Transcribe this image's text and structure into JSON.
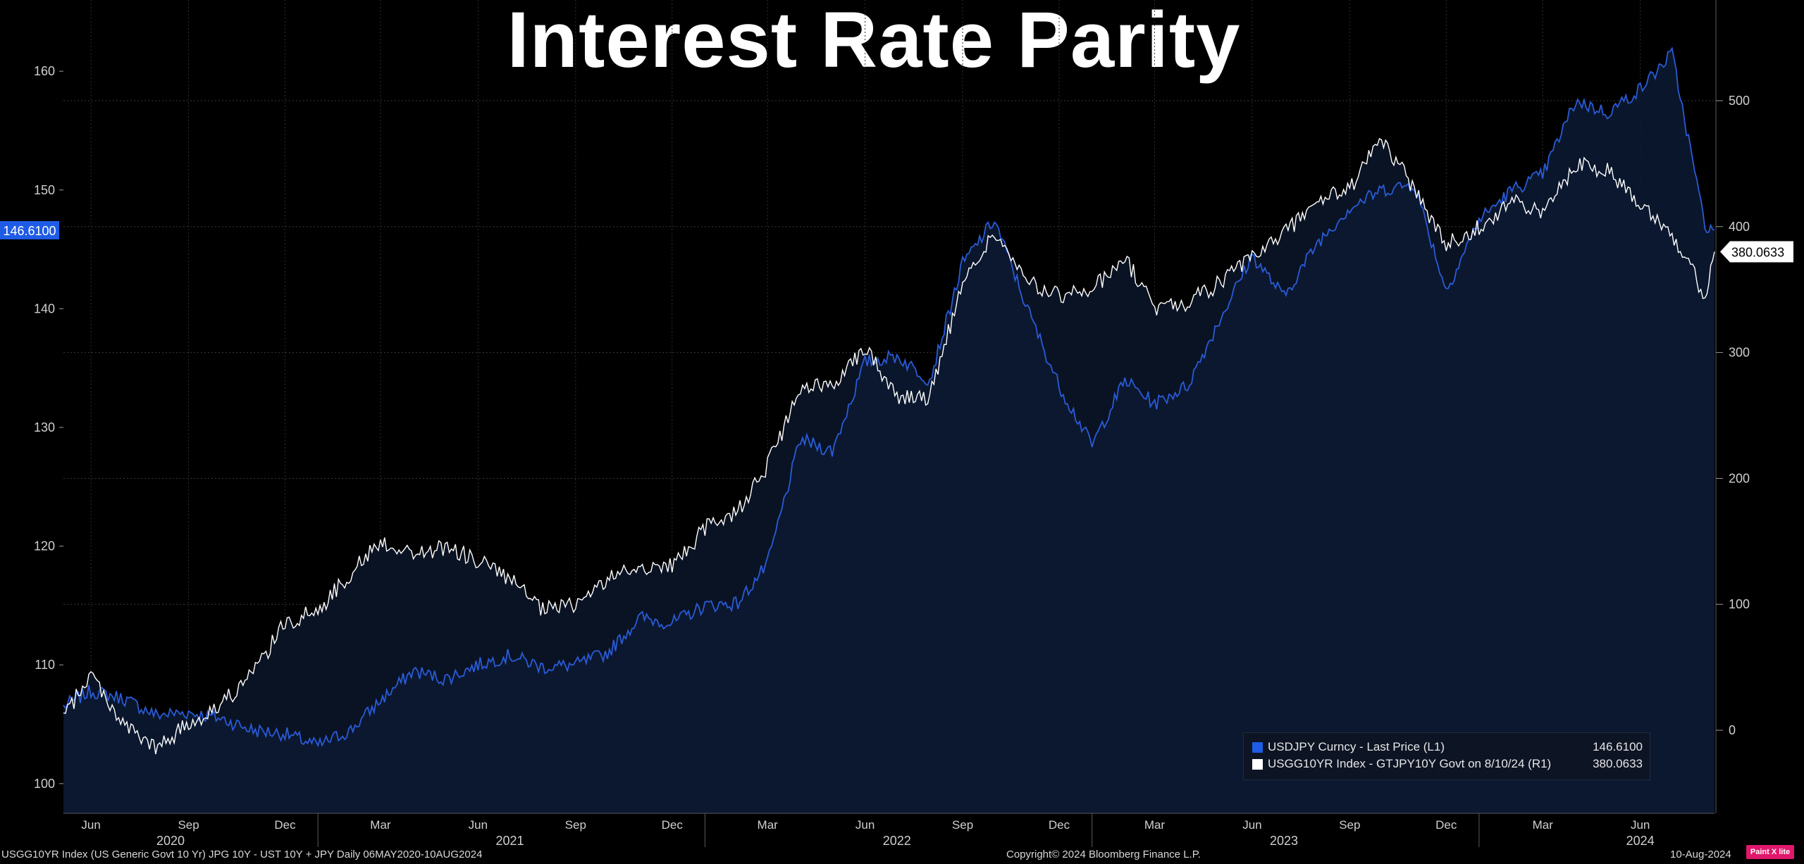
{
  "title": "Interest Rate Parity",
  "chart_data": {
    "type": "line",
    "left_axis": {
      "ticks": [
        100,
        110,
        120,
        130,
        140,
        150,
        160
      ],
      "ylim": [
        97.5,
        166
      ],
      "last_value_label": "146.6100",
      "last_value": 146.61
    },
    "right_axis": {
      "ticks": [
        0,
        100,
        200,
        300,
        400,
        500
      ],
      "ylim": [
        -66,
        580
      ],
      "last_value_label": "380.0633",
      "last_value": 380.0633
    },
    "x_axis": {
      "month_ticks": [
        "Jun",
        "Sep",
        "Dec",
        "Mar",
        "Jun",
        "Sep",
        "Dec",
        "Mar",
        "Jun",
        "Sep",
        "Dec",
        "Mar",
        "Jun",
        "Sep",
        "Dec",
        "Mar",
        "Jun"
      ],
      "year_labels": [
        "2020",
        "2021",
        "2022",
        "2023",
        "2024"
      ],
      "range": [
        "2020-05-06",
        "2024-08-10"
      ]
    },
    "series": [
      {
        "name": "USDJPY Curncy - Last Price (L1)",
        "axis": "left",
        "color": "#2a5bd7",
        "points": [
          [
            "2020-05-06",
            106.5
          ],
          [
            "2020-06-01",
            107.8
          ],
          [
            "2020-07-01",
            107.2
          ],
          [
            "2020-08-01",
            105.8
          ],
          [
            "2020-09-01",
            106.0
          ],
          [
            "2020-10-01",
            105.5
          ],
          [
            "2020-11-01",
            104.5
          ],
          [
            "2020-12-01",
            104.2
          ],
          [
            "2021-01-01",
            103.2
          ],
          [
            "2021-02-01",
            104.5
          ],
          [
            "2021-03-01",
            107.0
          ],
          [
            "2021-04-01",
            109.5
          ],
          [
            "2021-05-01",
            108.8
          ],
          [
            "2021-06-01",
            110.0
          ],
          [
            "2021-07-01",
            110.8
          ],
          [
            "2021-08-01",
            109.8
          ],
          [
            "2021-09-01",
            110.0
          ],
          [
            "2021-10-01",
            111.0
          ],
          [
            "2021-11-01",
            114.0
          ],
          [
            "2021-12-01",
            113.5
          ],
          [
            "2022-01-01",
            115.0
          ],
          [
            "2022-02-01",
            115.2
          ],
          [
            "2022-03-01",
            118.5
          ],
          [
            "2022-04-01",
            129.0
          ],
          [
            "2022-05-01",
            128.0
          ],
          [
            "2022-06-01",
            135.5
          ],
          [
            "2022-07-01",
            136.0
          ],
          [
            "2022-08-01",
            134.0
          ],
          [
            "2022-09-01",
            143.8
          ],
          [
            "2022-10-01",
            147.5
          ],
          [
            "2022-11-01",
            140.0
          ],
          [
            "2022-12-01",
            133.5
          ],
          [
            "2023-01-01",
            128.5
          ],
          [
            "2023-02-01",
            134.0
          ],
          [
            "2023-03-01",
            132.0
          ],
          [
            "2023-04-01",
            133.5
          ],
          [
            "2023-05-01",
            139.0
          ],
          [
            "2023-06-01",
            144.5
          ],
          [
            "2023-07-01",
            141.0
          ],
          [
            "2023-08-01",
            145.5
          ],
          [
            "2023-09-01",
            148.5
          ],
          [
            "2023-10-01",
            150.0
          ],
          [
            "2023-11-01",
            150.5
          ],
          [
            "2023-12-01",
            141.5
          ],
          [
            "2024-01-01",
            147.5
          ],
          [
            "2024-02-01",
            150.0
          ],
          [
            "2024-03-01",
            151.3
          ],
          [
            "2024-04-01",
            157.5
          ],
          [
            "2024-05-01",
            156.5
          ],
          [
            "2024-06-01",
            158.5
          ],
          [
            "2024-07-01",
            161.5
          ],
          [
            "2024-08-01",
            147.0
          ],
          [
            "2024-08-10",
            146.61
          ]
        ]
      },
      {
        "name": "USGG10YR Index - GTJPY10Y Govt on 8/10/24 (R1)",
        "axis": "right",
        "color": "#ffffff",
        "points": [
          [
            "2020-05-06",
            10
          ],
          [
            "2020-06-01",
            45
          ],
          [
            "2020-07-01",
            5
          ],
          [
            "2020-08-01",
            -15
          ],
          [
            "2020-09-01",
            5
          ],
          [
            "2020-10-01",
            20
          ],
          [
            "2020-11-01",
            45
          ],
          [
            "2020-12-01",
            85
          ],
          [
            "2021-01-01",
            95
          ],
          [
            "2021-02-01",
            125
          ],
          [
            "2021-03-01",
            150
          ],
          [
            "2021-04-01",
            140
          ],
          [
            "2021-05-01",
            145
          ],
          [
            "2021-06-01",
            135
          ],
          [
            "2021-07-01",
            120
          ],
          [
            "2021-08-01",
            95
          ],
          [
            "2021-09-01",
            100
          ],
          [
            "2021-10-01",
            120
          ],
          [
            "2021-11-01",
            130
          ],
          [
            "2021-12-01",
            130
          ],
          [
            "2022-01-01",
            160
          ],
          [
            "2022-02-01",
            175
          ],
          [
            "2022-03-01",
            210
          ],
          [
            "2022-04-01",
            270
          ],
          [
            "2022-05-01",
            275
          ],
          [
            "2022-06-01",
            305
          ],
          [
            "2022-07-01",
            265
          ],
          [
            "2022-08-01",
            265
          ],
          [
            "2022-09-01",
            355
          ],
          [
            "2022-10-01",
            395
          ],
          [
            "2022-11-01",
            355
          ],
          [
            "2022-12-01",
            345
          ],
          [
            "2023-01-01",
            350
          ],
          [
            "2023-02-01",
            375
          ],
          [
            "2023-03-01",
            335
          ],
          [
            "2023-04-01",
            340
          ],
          [
            "2023-05-01",
            355
          ],
          [
            "2023-06-01",
            375
          ],
          [
            "2023-07-01",
            395
          ],
          [
            "2023-08-01",
            420
          ],
          [
            "2023-09-01",
            430
          ],
          [
            "2023-10-01",
            470
          ],
          [
            "2023-11-01",
            430
          ],
          [
            "2023-12-01",
            385
          ],
          [
            "2024-01-01",
            400
          ],
          [
            "2024-02-01",
            420
          ],
          [
            "2024-03-01",
            410
          ],
          [
            "2024-04-01",
            450
          ],
          [
            "2024-05-01",
            445
          ],
          [
            "2024-06-01",
            420
          ],
          [
            "2024-07-01",
            395
          ],
          [
            "2024-08-01",
            345
          ],
          [
            "2024-08-10",
            380.0633
          ]
        ]
      }
    ],
    "legend": [
      {
        "label": "USDJPY Curncy - Last Price (L1)",
        "value": "146.6100",
        "color": "#1f5ce6"
      },
      {
        "label": "USGG10YR Index - GTJPY10Y Govt on 8/10/24 (R1)",
        "value": "380.0633",
        "color": "#ffffff"
      }
    ]
  },
  "footer": {
    "description": "USGG10YR Index (US Generic Govt 10 Yr) JPG 10Y - UST 10Y + JPY  Daily 06MAY2020-10AUG2024",
    "copyright": "Copyright© 2024 Bloomberg Finance L.P.",
    "date": "10-Aug-2024"
  },
  "badge": "Paint X lite"
}
